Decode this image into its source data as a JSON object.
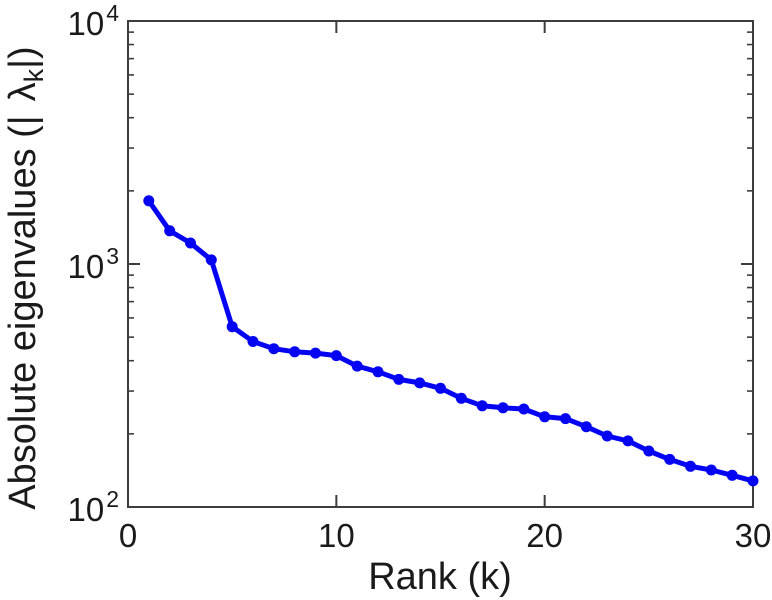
{
  "chart_data": {
    "type": "line",
    "title": "",
    "xlabel": "Rank (k)",
    "ylabel": "Absolute eigenvalues (| λ_k |)",
    "ylabel_parts": {
      "prefix": "Absolute eigenvalues (|",
      "symbol": "λ",
      "subscript": "k",
      "suffix": "|)"
    },
    "xscale": "linear",
    "yscale": "log",
    "xlim": [
      0,
      30
    ],
    "ylim": [
      100,
      10000
    ],
    "grid": false,
    "legend": null,
    "x_ticks": [
      {
        "value": 0,
        "label": "0"
      },
      {
        "value": 10,
        "label": "10"
      },
      {
        "value": 20,
        "label": "20"
      },
      {
        "value": 30,
        "label": "30"
      }
    ],
    "y_ticks": [
      {
        "value": 100,
        "mantissa": "10",
        "exponent": "2"
      },
      {
        "value": 1000,
        "mantissa": "10",
        "exponent": "3"
      },
      {
        "value": 10000,
        "mantissa": "10",
        "exponent": "4"
      }
    ],
    "axis_color": "#3d3d3d",
    "text_color": "#1a1a1a",
    "series": [
      {
        "name": "absolute-eigenvalues",
        "color": "#0404F2",
        "marker": "circle",
        "x": [
          1,
          2,
          3,
          4,
          5,
          6,
          7,
          8,
          9,
          10,
          11,
          12,
          13,
          14,
          15,
          16,
          17,
          18,
          19,
          20,
          21,
          22,
          23,
          24,
          25,
          26,
          27,
          28,
          29,
          30
        ],
        "y": [
          1820,
          1370,
          1220,
          1040,
          552,
          480,
          448,
          435,
          430,
          420,
          380,
          360,
          335,
          324,
          308,
          280,
          261,
          256,
          253,
          235,
          231,
          214,
          196,
          187,
          170,
          157,
          147,
          142,
          135,
          128
        ]
      }
    ]
  }
}
